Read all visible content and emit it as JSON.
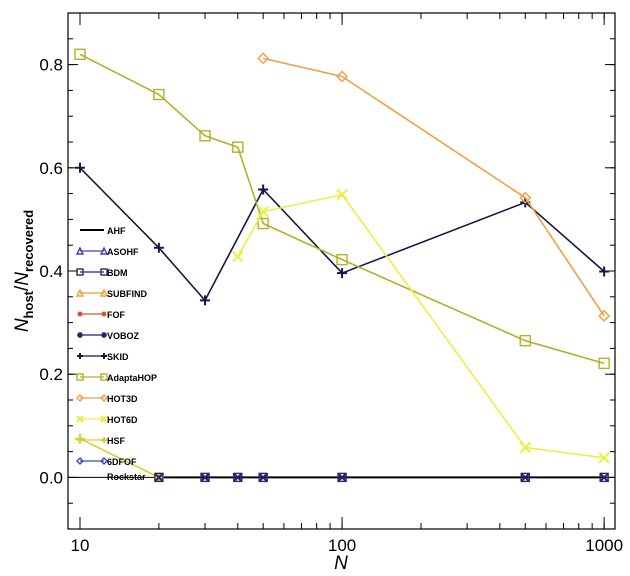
{
  "chart_data": {
    "type": "line",
    "xlabel": "N",
    "ylabel": "N_host/N_recovered",
    "ylabel_main": "N",
    "ylabel_sub1": "host",
    "ylabel_sep": "/",
    "ylabel_main2": "N",
    "ylabel_sub2": "recovered",
    "x_scale": "log",
    "xlim": [
      9,
      1100
    ],
    "ylim": [
      -0.1,
      0.9
    ],
    "x_ticks": [
      10,
      100,
      1000
    ],
    "x_tick_labels": [
      "10",
      "100",
      "1000"
    ],
    "y_ticks": [
      0.0,
      0.2,
      0.4,
      0.6,
      0.8
    ],
    "y_tick_labels": [
      "0.0",
      "0.2",
      "0.4",
      "0.6",
      "0.8"
    ],
    "grid": false,
    "legend_position": "left",
    "series": [
      {
        "name": "AHF",
        "color": "#000000",
        "marker": "none",
        "x": [
          20,
          30,
          40,
          50,
          100,
          500,
          1000
        ],
        "y": [
          0,
          0,
          0,
          0,
          0,
          0,
          0
        ]
      },
      {
        "name": "ASOHF",
        "color": "#4a3fa0",
        "marker": "triangle",
        "x": [],
        "y": []
      },
      {
        "name": "BDM",
        "color": "#3c1e6e",
        "marker": "square",
        "x": [],
        "y": []
      },
      {
        "name": "SUBFIND",
        "color": "#e8a030",
        "marker": "triangle",
        "x": [],
        "y": []
      },
      {
        "name": "FOF",
        "color": "#e05030",
        "marker": "dot",
        "x": [],
        "y": []
      },
      {
        "name": "VOBOZ",
        "color": "#23236e",
        "marker": "asterisk",
        "x": [],
        "y": []
      },
      {
        "name": "SKID",
        "color": "#16164a",
        "marker": "plus",
        "x": [
          10,
          20,
          30,
          50,
          100,
          500,
          1000
        ],
        "y": [
          0.6,
          0.445,
          0.343,
          0.558,
          0.396,
          0.533,
          0.399
        ]
      },
      {
        "name": "AdaptaHOP",
        "color": "#b5b028",
        "marker": "square",
        "x": [
          10,
          20,
          30,
          40,
          50,
          100,
          500,
          1000
        ],
        "y": [
          0.82,
          0.742,
          0.662,
          0.64,
          0.492,
          0.422,
          0.265,
          0.221
        ]
      },
      {
        "name": "HOT3D",
        "color": "#f0a040",
        "marker": "diamond",
        "x": [
          50,
          100,
          500,
          1000
        ],
        "y": [
          0.812,
          0.777,
          0.542,
          0.313
        ]
      },
      {
        "name": "HOT6D",
        "color": "#eeee40",
        "marker": "x",
        "x": [
          40,
          50,
          100,
          500,
          1000
        ],
        "y": [
          0.428,
          0.515,
          0.548,
          0.058,
          0.038
        ]
      },
      {
        "name": "HSF",
        "color": "#d8d030",
        "marker": "plus",
        "x": [
          10,
          20
        ],
        "y": [
          0.075,
          0.0
        ]
      },
      {
        "name": "6DFOF",
        "color": "#3050b0",
        "marker": "diamond",
        "x": [],
        "y": []
      },
      {
        "name": "Rockstar",
        "color": "#ffffff",
        "marker": "none",
        "x": [],
        "y": []
      }
    ]
  }
}
